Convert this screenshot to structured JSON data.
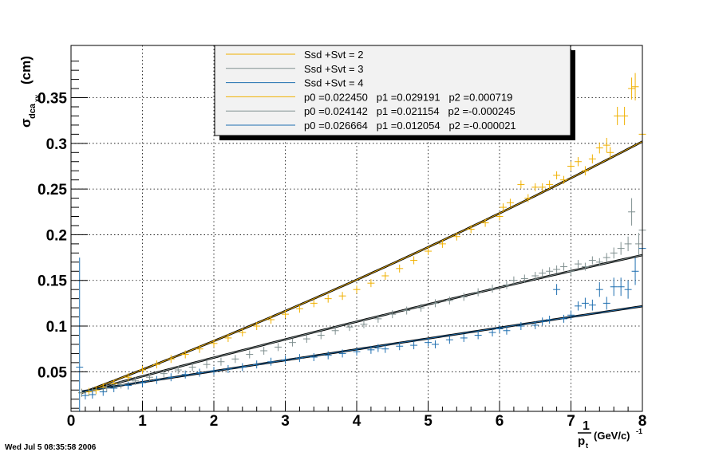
{
  "timestamp": "Wed Jul  5 08:35:58 2006",
  "chart_data": {
    "type": "scatter",
    "title": "",
    "xlabel": "1/p_t (GeV/c)^-1",
    "ylabel": "σ_dca_xy (cm)",
    "xlim": [
      0,
      8
    ],
    "ylim": [
      0.005,
      0.4
    ],
    "grid": true,
    "legend_position": "top-center",
    "x_ticks": [
      0,
      1,
      2,
      3,
      4,
      5,
      6,
      7,
      8
    ],
    "x_tick_labels": [
      "0",
      "1",
      "2",
      "3",
      "4",
      "5",
      "6",
      "7",
      "8"
    ],
    "y_ticks": [
      0.05,
      0.1,
      0.15,
      0.2,
      0.25,
      0.3,
      0.35
    ],
    "y_tick_labels": [
      "0.05",
      "0.1",
      "0.15",
      "0.2",
      "0.25",
      "0.3",
      "0.35"
    ],
    "legend": [
      {
        "label": "Ssd +Svt = 2",
        "color": "#f0b000"
      },
      {
        "label": "Ssd +Svt = 3",
        "color": "#7f8f8f"
      },
      {
        "label": "Ssd +Svt = 4",
        "color": "#1f6fb0"
      },
      {
        "label": "p0 =0.022450   p1 =0.029191   p2 =0.000719",
        "color": "#f0b000"
      },
      {
        "label": "p0 =0.024142   p1 =0.021154   p2 =-0.000245",
        "color": "#7f8f8f"
      },
      {
        "label": "p0 =0.026664   p1 =0.012054   p2 =-0.000021",
        "color": "#1f6fb0"
      }
    ],
    "fits": [
      {
        "series": "Ssd +Svt = 2",
        "p0": 0.02245,
        "p1": 0.029191,
        "p2": 0.000719,
        "color": "#f0b000"
      },
      {
        "series": "Ssd +Svt = 3",
        "p0": 0.024142,
        "p1": 0.021154,
        "p2": -0.000245,
        "color": "#7f8f8f"
      },
      {
        "series": "Ssd +Svt = 4",
        "p0": 0.026664,
        "p1": 0.012054,
        "p2": -2.1e-05,
        "color": "#1f6fb0"
      }
    ],
    "series": [
      {
        "name": "Ssd +Svt = 2",
        "color": "#f0b000",
        "points": [
          [
            0.15,
            0.027
          ],
          [
            0.25,
            0.028
          ],
          [
            0.35,
            0.03
          ],
          [
            0.45,
            0.033
          ],
          [
            0.6,
            0.037
          ],
          [
            0.8,
            0.044
          ],
          [
            1.0,
            0.052
          ],
          [
            1.2,
            0.058
          ],
          [
            1.4,
            0.064
          ],
          [
            1.6,
            0.069
          ],
          [
            1.8,
            0.075
          ],
          [
            2.0,
            0.081
          ],
          [
            2.2,
            0.087
          ],
          [
            2.4,
            0.093
          ],
          [
            2.6,
            0.1
          ],
          [
            2.8,
            0.107
          ],
          [
            3.0,
            0.113
          ],
          [
            3.2,
            0.119
          ],
          [
            3.4,
            0.125
          ],
          [
            3.6,
            0.13
          ],
          [
            3.8,
            0.133
          ],
          [
            4.0,
            0.14
          ],
          [
            4.2,
            0.147
          ],
          [
            4.4,
            0.155
          ],
          [
            4.6,
            0.163
          ],
          [
            4.8,
            0.172
          ],
          [
            5.0,
            0.182
          ],
          [
            5.2,
            0.19
          ],
          [
            5.4,
            0.198
          ],
          [
            5.6,
            0.206
          ],
          [
            5.8,
            0.213
          ],
          [
            6.0,
            0.22
          ],
          [
            6.05,
            0.23
          ],
          [
            6.15,
            0.235
          ],
          [
            6.3,
            0.255
          ],
          [
            6.4,
            0.24
          ],
          [
            6.5,
            0.252
          ],
          [
            6.6,
            0.252
          ],
          [
            6.7,
            0.255
          ],
          [
            6.8,
            0.265
          ],
          [
            6.9,
            0.26
          ],
          [
            7.0,
            0.275
          ],
          [
            7.1,
            0.28
          ],
          [
            7.2,
            0.27
          ],
          [
            7.3,
            0.283
          ],
          [
            7.4,
            0.295
          ],
          [
            7.5,
            0.298
          ],
          [
            7.55,
            0.29
          ],
          [
            7.65,
            0.33
          ],
          [
            7.75,
            0.33
          ],
          [
            7.85,
            0.36
          ],
          [
            7.9,
            0.362
          ],
          [
            8.0,
            0.31
          ]
        ],
        "errors": [
          0.002,
          0.002,
          0.002,
          0.002,
          0.002,
          0.002,
          0.002,
          0.002,
          0.002,
          0.002,
          0.002,
          0.002,
          0.002,
          0.002,
          0.002,
          0.002,
          0.002,
          0.002,
          0.002,
          0.002,
          0.002,
          0.002,
          0.002,
          0.002,
          0.002,
          0.002,
          0.002,
          0.002,
          0.002,
          0.002,
          0.002,
          0.003,
          0.003,
          0.003,
          0.003,
          0.003,
          0.003,
          0.003,
          0.003,
          0.004,
          0.004,
          0.005,
          0.005,
          0.005,
          0.005,
          0.006,
          0.008,
          0.006,
          0.01,
          0.01,
          0.012,
          0.015,
          0.04
        ]
      },
      {
        "name": "Ssd +Svt = 3",
        "color": "#7f8f8f",
        "points": [
          [
            0.15,
            0.027
          ],
          [
            0.3,
            0.029
          ],
          [
            0.5,
            0.032
          ],
          [
            0.7,
            0.036
          ],
          [
            0.9,
            0.04
          ],
          [
            1.1,
            0.044
          ],
          [
            1.3,
            0.048
          ],
          [
            1.5,
            0.052
          ],
          [
            1.7,
            0.055
          ],
          [
            1.9,
            0.058
          ],
          [
            2.1,
            0.061
          ],
          [
            2.3,
            0.064
          ],
          [
            2.5,
            0.069
          ],
          [
            2.7,
            0.073
          ],
          [
            2.9,
            0.077
          ],
          [
            3.1,
            0.082
          ],
          [
            3.3,
            0.086
          ],
          [
            3.5,
            0.09
          ],
          [
            3.7,
            0.095
          ],
          [
            3.9,
            0.099
          ],
          [
            4.1,
            0.102
          ],
          [
            4.3,
            0.108
          ],
          [
            4.5,
            0.113
          ],
          [
            4.7,
            0.117
          ],
          [
            4.9,
            0.12
          ],
          [
            5.1,
            0.125
          ],
          [
            5.3,
            0.128
          ],
          [
            5.5,
            0.132
          ],
          [
            5.7,
            0.137
          ],
          [
            5.9,
            0.141
          ],
          [
            6.1,
            0.145
          ],
          [
            6.2,
            0.15
          ],
          [
            6.35,
            0.152
          ],
          [
            6.5,
            0.155
          ],
          [
            6.6,
            0.158
          ],
          [
            6.7,
            0.16
          ],
          [
            6.8,
            0.162
          ],
          [
            6.9,
            0.165
          ],
          [
            7.0,
            0.16
          ],
          [
            7.1,
            0.168
          ],
          [
            7.2,
            0.165
          ],
          [
            7.3,
            0.172
          ],
          [
            7.4,
            0.17
          ],
          [
            7.5,
            0.175
          ],
          [
            7.6,
            0.18
          ],
          [
            7.7,
            0.185
          ],
          [
            7.8,
            0.19
          ],
          [
            7.85,
            0.225
          ],
          [
            7.95,
            0.19
          ],
          [
            8.0,
            0.205
          ]
        ],
        "errors": [
          0.002,
          0.002,
          0.002,
          0.002,
          0.002,
          0.002,
          0.002,
          0.002,
          0.002,
          0.002,
          0.002,
          0.002,
          0.002,
          0.002,
          0.002,
          0.002,
          0.002,
          0.002,
          0.002,
          0.002,
          0.002,
          0.002,
          0.002,
          0.002,
          0.002,
          0.002,
          0.002,
          0.002,
          0.002,
          0.002,
          0.002,
          0.003,
          0.003,
          0.003,
          0.003,
          0.003,
          0.003,
          0.003,
          0.003,
          0.003,
          0.003,
          0.004,
          0.004,
          0.005,
          0.006,
          0.007,
          0.008,
          0.015,
          0.012,
          0.02
        ]
      },
      {
        "name": "Ssd +Svt = 4",
        "color": "#1f6fb0",
        "points": [
          [
            0.12,
            0.055
          ],
          [
            0.2,
            0.024
          ],
          [
            0.3,
            0.025
          ],
          [
            0.45,
            0.028
          ],
          [
            0.6,
            0.032
          ],
          [
            0.8,
            0.035
          ],
          [
            1.0,
            0.038
          ],
          [
            1.2,
            0.041
          ],
          [
            1.4,
            0.044
          ],
          [
            1.6,
            0.047
          ],
          [
            1.8,
            0.049
          ],
          [
            2.0,
            0.051
          ],
          [
            2.2,
            0.053
          ],
          [
            2.4,
            0.055
          ],
          [
            2.6,
            0.058
          ],
          [
            2.8,
            0.061
          ],
          [
            3.0,
            0.063
          ],
          [
            3.2,
            0.065
          ],
          [
            3.4,
            0.066
          ],
          [
            3.6,
            0.068
          ],
          [
            3.8,
            0.07
          ],
          [
            4.0,
            0.072
          ],
          [
            4.2,
            0.074
          ],
          [
            4.3,
            0.076
          ],
          [
            4.4,
            0.075
          ],
          [
            4.6,
            0.078
          ],
          [
            4.8,
            0.079
          ],
          [
            5.0,
            0.082
          ],
          [
            5.1,
            0.08
          ],
          [
            5.3,
            0.085
          ],
          [
            5.5,
            0.087
          ],
          [
            5.7,
            0.09
          ],
          [
            5.9,
            0.093
          ],
          [
            6.0,
            0.097
          ],
          [
            6.1,
            0.095
          ],
          [
            6.3,
            0.1
          ],
          [
            6.5,
            0.101
          ],
          [
            6.6,
            0.105
          ],
          [
            6.7,
            0.107
          ],
          [
            6.8,
            0.14
          ],
          [
            6.9,
            0.108
          ],
          [
            7.0,
            0.112
          ],
          [
            7.1,
            0.122
          ],
          [
            7.2,
            0.125
          ],
          [
            7.3,
            0.123
          ],
          [
            7.4,
            0.14
          ],
          [
            7.5,
            0.125
          ],
          [
            7.6,
            0.143
          ],
          [
            7.7,
            0.143
          ],
          [
            7.8,
            0.14
          ],
          [
            7.9,
            0.16
          ],
          [
            8.0,
            0.185
          ]
        ],
        "errors": [
          0.12,
          0.002,
          0.002,
          0.002,
          0.002,
          0.002,
          0.002,
          0.002,
          0.002,
          0.002,
          0.002,
          0.002,
          0.002,
          0.002,
          0.002,
          0.002,
          0.002,
          0.002,
          0.002,
          0.002,
          0.002,
          0.002,
          0.002,
          0.002,
          0.002,
          0.002,
          0.002,
          0.002,
          0.002,
          0.002,
          0.002,
          0.002,
          0.003,
          0.003,
          0.003,
          0.003,
          0.003,
          0.003,
          0.004,
          0.006,
          0.004,
          0.005,
          0.005,
          0.006,
          0.006,
          0.008,
          0.007,
          0.01,
          0.01,
          0.01,
          0.015,
          0.03
        ]
      }
    ]
  }
}
